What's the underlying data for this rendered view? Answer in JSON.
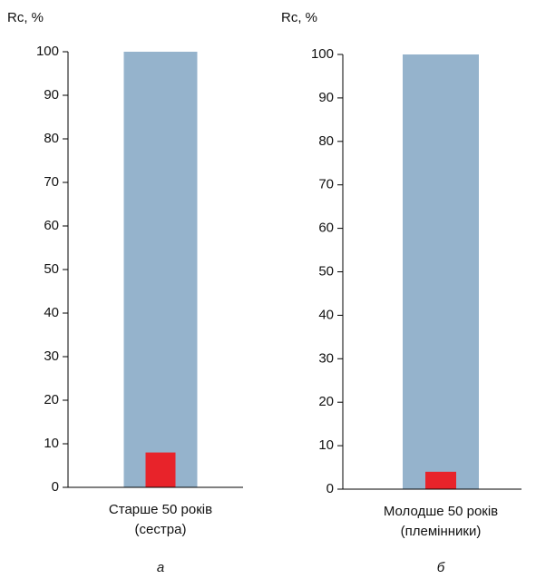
{
  "chart_data": [
    {
      "type": "bar",
      "ylabel": "Rc, %",
      "categories": [
        "Старше 50 років\n(сестра)"
      ],
      "series": [
        {
          "color": "#95b3cc",
          "values": [
            100
          ]
        },
        {
          "color": "#e8232a",
          "values": [
            8
          ]
        }
      ],
      "ylim": [
        0,
        100
      ],
      "yticks": [
        0,
        10,
        20,
        30,
        40,
        50,
        60,
        70,
        80,
        90,
        100
      ],
      "caption": "а"
    },
    {
      "type": "bar",
      "ylabel": "Rc, %",
      "categories": [
        "Молодше 50 років\n(племінники)"
      ],
      "series": [
        {
          "color": "#95b3cc",
          "values": [
            100
          ]
        },
        {
          "color": "#e8232a",
          "values": [
            4
          ]
        }
      ],
      "ylim": [
        0,
        100
      ],
      "yticks": [
        0,
        10,
        20,
        30,
        40,
        50,
        60,
        70,
        80,
        90,
        100
      ],
      "caption": "б"
    }
  ]
}
